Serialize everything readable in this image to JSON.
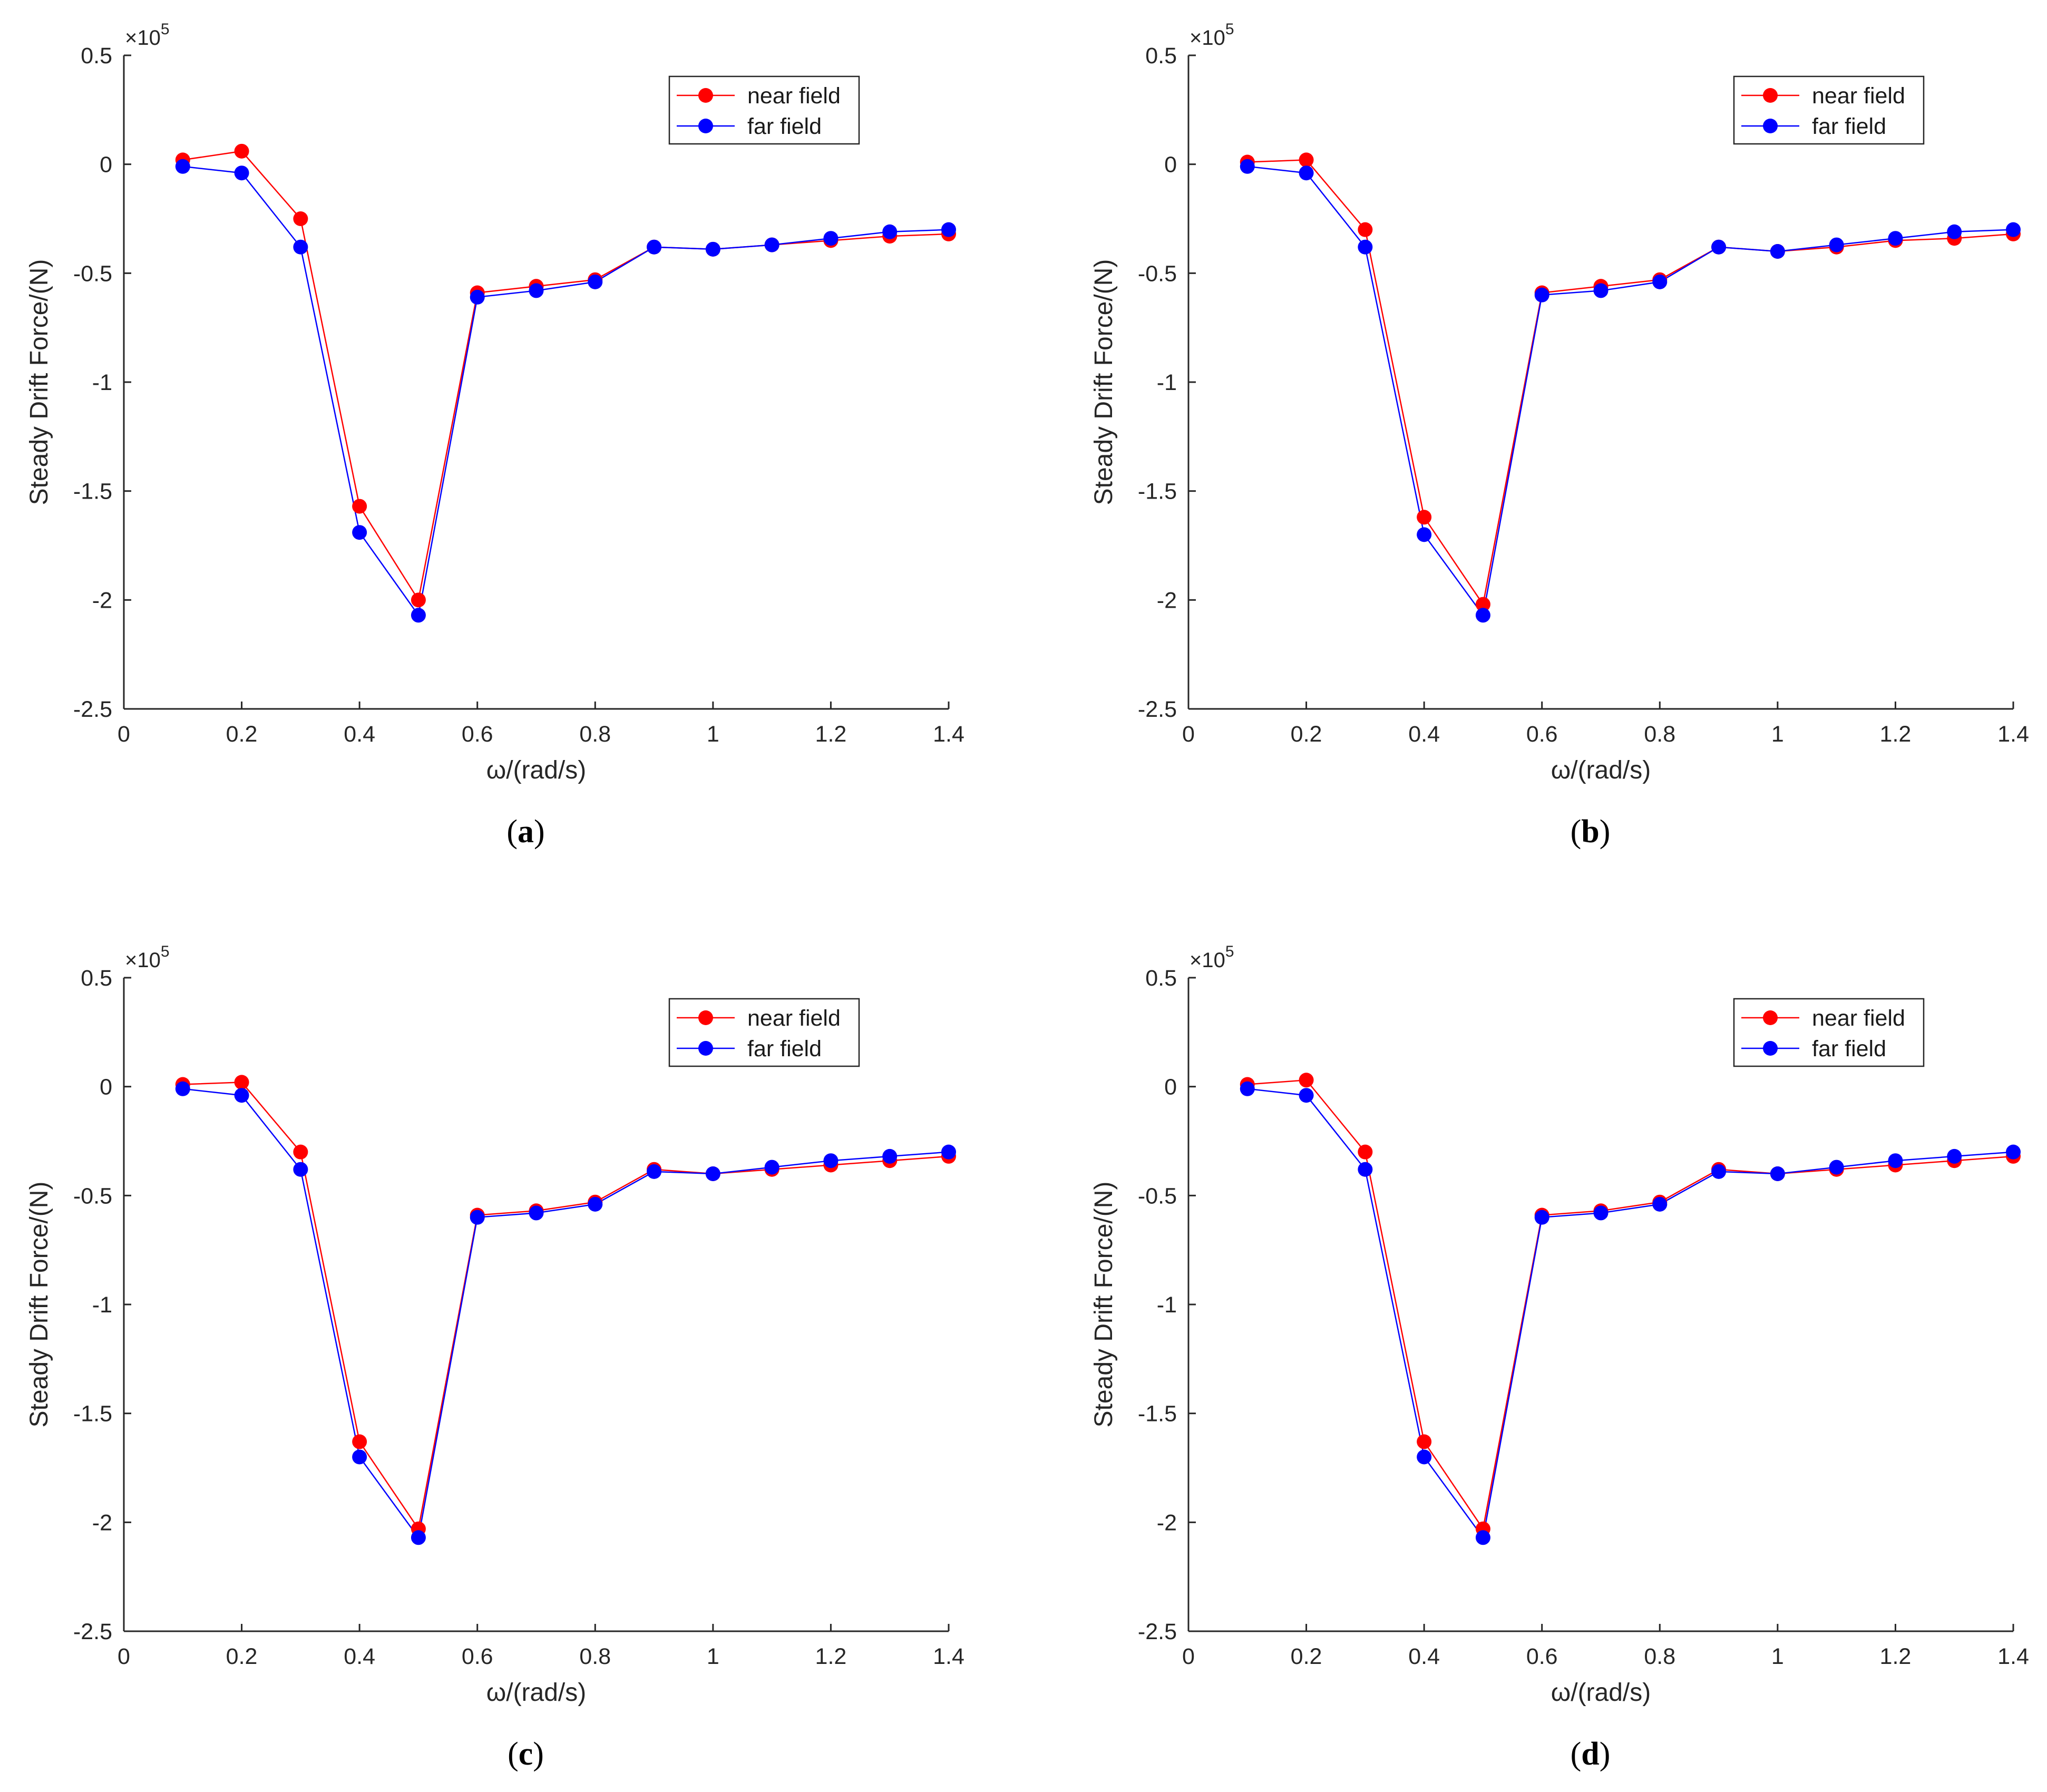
{
  "colors": {
    "near_field": "#ff0000",
    "far_field": "#0000ff",
    "axis": "#262626",
    "legend_border": "#262626"
  },
  "chart_data": [
    {
      "panel": "(a)",
      "caption_letter": "a",
      "type": "line",
      "xlabel": "ω/(rad/s)",
      "ylabel": "Steady Drift Force/(N)",
      "y_exponent": "×10",
      "y_exponent_power": "5",
      "xlim": [
        0,
        1.4
      ],
      "ylim": [
        -2.5,
        0.5
      ],
      "x_ticks": [
        "0",
        "0.2",
        "0.4",
        "0.6",
        "0.8",
        "1",
        "1.2",
        "1.4"
      ],
      "y_ticks": [
        "0.5",
        "0",
        "-0.5",
        "-1",
        "-1.5",
        "-2",
        "-2.5"
      ],
      "legend_position": "top-right",
      "x": [
        0.1,
        0.2,
        0.3,
        0.4,
        0.5,
        0.6,
        0.7,
        0.8,
        0.9,
        1.0,
        1.1,
        1.2,
        1.3,
        1.4
      ],
      "series": [
        {
          "name": "near field",
          "values": [
            0.02,
            0.06,
            -0.25,
            -1.57,
            -2.0,
            -0.59,
            -0.56,
            -0.53,
            -0.38,
            -0.39,
            -0.37,
            -0.35,
            -0.33,
            -0.32
          ]
        },
        {
          "name": "far field",
          "values": [
            -0.01,
            -0.04,
            -0.38,
            -1.69,
            -2.07,
            -0.61,
            -0.58,
            -0.54,
            -0.38,
            -0.39,
            -0.37,
            -0.34,
            -0.31,
            -0.3
          ]
        }
      ]
    },
    {
      "panel": "(b)",
      "caption_letter": "b",
      "type": "line",
      "xlabel": "ω/(rad/s)",
      "ylabel": "Steady Drift Force/(N)",
      "y_exponent": "×10",
      "y_exponent_power": "5",
      "xlim": [
        0,
        1.4
      ],
      "ylim": [
        -2.5,
        0.5
      ],
      "x_ticks": [
        "0",
        "0.2",
        "0.4",
        "0.6",
        "0.8",
        "1",
        "1.2",
        "1.4"
      ],
      "y_ticks": [
        "0.5",
        "0",
        "-0.5",
        "-1",
        "-1.5",
        "-2",
        "-2.5"
      ],
      "legend_position": "top-right",
      "x": [
        0.1,
        0.2,
        0.3,
        0.4,
        0.5,
        0.6,
        0.7,
        0.8,
        0.9,
        1.0,
        1.1,
        1.2,
        1.3,
        1.4
      ],
      "series": [
        {
          "name": "near field",
          "values": [
            0.01,
            0.02,
            -0.3,
            -1.62,
            -2.02,
            -0.59,
            -0.56,
            -0.53,
            -0.38,
            -0.4,
            -0.38,
            -0.35,
            -0.34,
            -0.32
          ]
        },
        {
          "name": "far field",
          "values": [
            -0.01,
            -0.04,
            -0.38,
            -1.7,
            -2.07,
            -0.6,
            -0.58,
            -0.54,
            -0.38,
            -0.4,
            -0.37,
            -0.34,
            -0.31,
            -0.3
          ]
        }
      ]
    },
    {
      "panel": "(c)",
      "caption_letter": "c",
      "type": "line",
      "xlabel": "ω/(rad/s)",
      "ylabel": "Steady Drift Force/(N)",
      "y_exponent": "×10",
      "y_exponent_power": "5",
      "xlim": [
        0,
        1.4
      ],
      "ylim": [
        -2.5,
        0.5
      ],
      "x_ticks": [
        "0",
        "0.2",
        "0.4",
        "0.6",
        "0.8",
        "1",
        "1.2",
        "1.4"
      ],
      "y_ticks": [
        "0.5",
        "0",
        "-0.5",
        "-1",
        "-1.5",
        "-2",
        "-2.5"
      ],
      "legend_position": "top-right",
      "x": [
        0.1,
        0.2,
        0.3,
        0.4,
        0.5,
        0.6,
        0.7,
        0.8,
        0.9,
        1.0,
        1.1,
        1.2,
        1.3,
        1.4
      ],
      "series": [
        {
          "name": "near field",
          "values": [
            0.01,
            0.02,
            -0.3,
            -1.63,
            -2.03,
            -0.59,
            -0.57,
            -0.53,
            -0.38,
            -0.4,
            -0.38,
            -0.36,
            -0.34,
            -0.32
          ]
        },
        {
          "name": "far field",
          "values": [
            -0.01,
            -0.04,
            -0.38,
            -1.7,
            -2.07,
            -0.6,
            -0.58,
            -0.54,
            -0.39,
            -0.4,
            -0.37,
            -0.34,
            -0.32,
            -0.3
          ]
        }
      ]
    },
    {
      "panel": "(d)",
      "caption_letter": "d",
      "type": "line",
      "xlabel": "ω/(rad/s)",
      "ylabel": "Steady Drift Force/(N)",
      "y_exponent": "×10",
      "y_exponent_power": "5",
      "xlim": [
        0,
        1.4
      ],
      "ylim": [
        -2.5,
        0.5
      ],
      "x_ticks": [
        "0",
        "0.2",
        "0.4",
        "0.6",
        "0.8",
        "1",
        "1.2",
        "1.4"
      ],
      "y_ticks": [
        "0.5",
        "0",
        "-0.5",
        "-1",
        "-1.5",
        "-2",
        "-2.5"
      ],
      "legend_position": "top-right",
      "x": [
        0.1,
        0.2,
        0.3,
        0.4,
        0.5,
        0.6,
        0.7,
        0.8,
        0.9,
        1.0,
        1.1,
        1.2,
        1.3,
        1.4
      ],
      "series": [
        {
          "name": "near field",
          "values": [
            0.01,
            0.03,
            -0.3,
            -1.63,
            -2.03,
            -0.59,
            -0.57,
            -0.53,
            -0.38,
            -0.4,
            -0.38,
            -0.36,
            -0.34,
            -0.32
          ]
        },
        {
          "name": "far field",
          "values": [
            -0.01,
            -0.04,
            -0.38,
            -1.7,
            -2.07,
            -0.6,
            -0.58,
            -0.54,
            -0.39,
            -0.4,
            -0.37,
            -0.34,
            -0.32,
            -0.3
          ]
        }
      ]
    }
  ]
}
